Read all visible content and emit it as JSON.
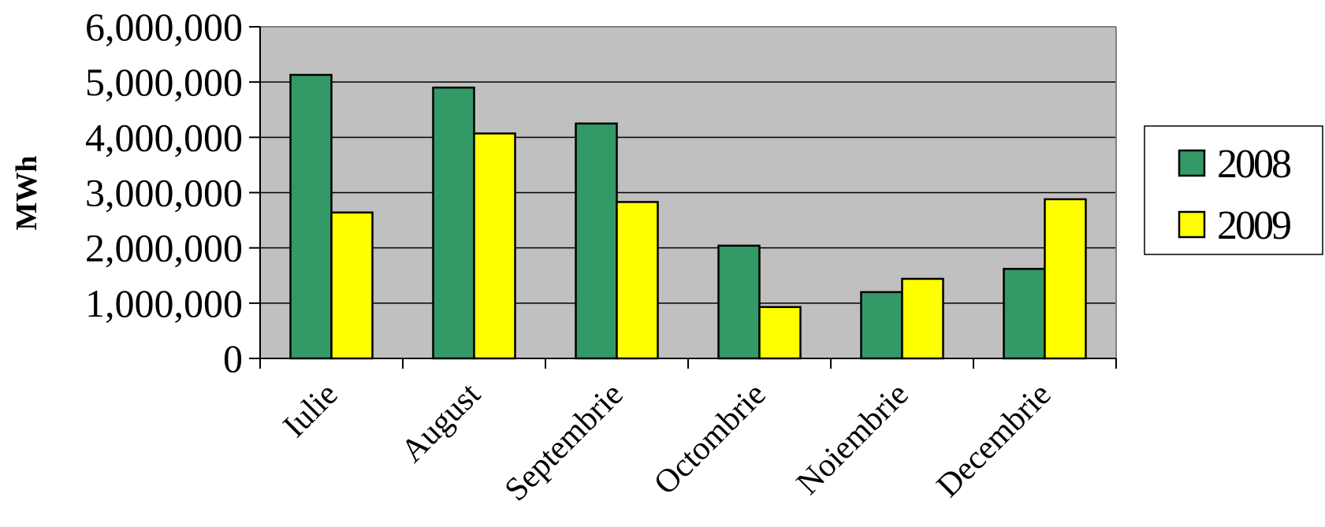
{
  "chart_data": {
    "type": "bar",
    "title": "",
    "xlabel": "",
    "ylabel": "MWh",
    "ylim": [
      0,
      6000000
    ],
    "yticks": [
      0,
      1000000,
      2000000,
      3000000,
      4000000,
      5000000,
      6000000
    ],
    "ytick_labels": [
      "0",
      "1,000,000",
      "2,000,000",
      "3,000,000",
      "4,000,000",
      "5,000,000",
      "6,000,000"
    ],
    "categories": [
      "Iulie",
      "August",
      "Septembrie",
      "Octombrie",
      "Noiembrie",
      "Decembrie"
    ],
    "series": [
      {
        "name": "2008",
        "color": "#339966",
        "values": [
          5130000,
          4900000,
          4250000,
          2040000,
          1200000,
          1620000
        ]
      },
      {
        "name": "2009",
        "color": "#ffff00",
        "values": [
          2640000,
          4070000,
          2830000,
          930000,
          1440000,
          2880000
        ]
      }
    ],
    "plot_background": "#c0c0c0",
    "grid": true,
    "legend": "right"
  }
}
